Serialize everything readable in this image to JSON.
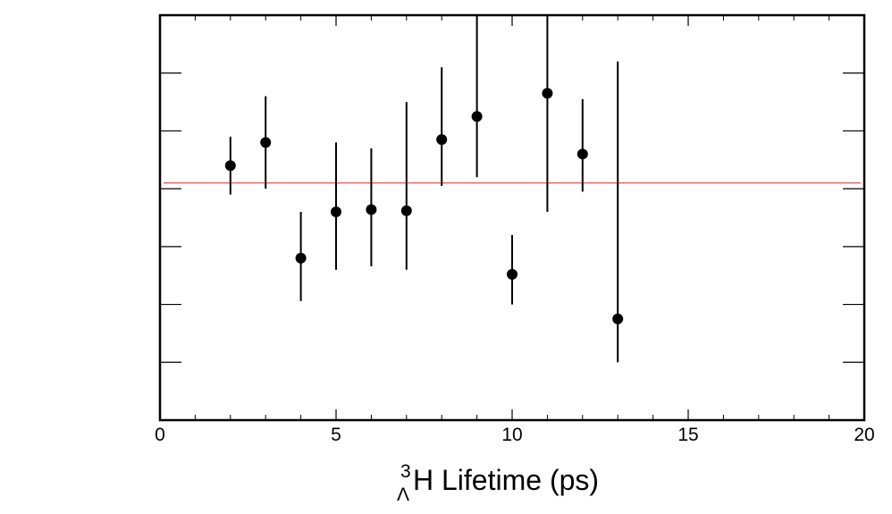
{
  "chart_data": {
    "type": "scatter",
    "title": "",
    "xlabel": {
      "superscript": "3",
      "subscript": "Λ",
      "main": "H Lifetime (ps)"
    },
    "ylabel": "",
    "xlim": [
      0,
      20
    ],
    "ylim": [
      0,
      7
    ],
    "x_ticks": [
      {
        "value": 0,
        "label": "0"
      },
      {
        "value": 5,
        "label": "5"
      },
      {
        "value": 10,
        "label": "10"
      },
      {
        "value": 15,
        "label": "15"
      },
      {
        "value": 20,
        "label": "20"
      }
    ],
    "y_tick_values": [
      1,
      2,
      3,
      4,
      5,
      6
    ],
    "x_minor_step": 1,
    "grid": false,
    "series": [
      {
        "points": [
          {
            "x": 2,
            "y": 4.4,
            "ylow": 3.9,
            "yhigh": 4.9
          },
          {
            "x": 3,
            "y": 4.8,
            "ylow": 4.0,
            "yhigh": 5.6
          },
          {
            "x": 4,
            "y": 2.8,
            "ylow": 2.06,
            "yhigh": 3.6
          },
          {
            "x": 5,
            "y": 3.6,
            "ylow": 2.6,
            "yhigh": 4.8
          },
          {
            "x": 6,
            "y": 3.64,
            "ylow": 2.66,
            "yhigh": 4.7
          },
          {
            "x": 7,
            "y": 3.62,
            "ylow": 2.6,
            "yhigh": 5.5
          },
          {
            "x": 8,
            "y": 4.85,
            "ylow": 4.05,
            "yhigh": 6.1
          },
          {
            "x": 9,
            "y": 5.25,
            "ylow": 4.2,
            "yhigh": 7.0
          },
          {
            "x": 10,
            "y": 2.52,
            "ylow": 2.0,
            "yhigh": 3.2
          },
          {
            "x": 11,
            "y": 5.65,
            "ylow": 3.6,
            "yhigh": 7.0
          },
          {
            "x": 12,
            "y": 4.6,
            "ylow": 3.95,
            "yhigh": 5.55
          },
          {
            "x": 13,
            "y": 1.75,
            "ylow": 1.0,
            "yhigh": 6.2
          }
        ],
        "color": "#000000"
      }
    ],
    "reference_line": {
      "y": 4.1,
      "x_from": 0.1,
      "x_to": 19.9,
      "color": "#e06666"
    }
  }
}
